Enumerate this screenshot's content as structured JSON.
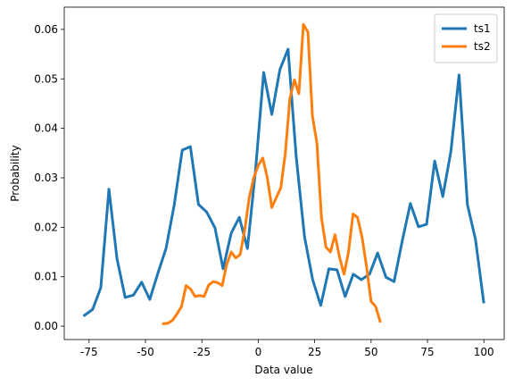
{
  "chart_data": {
    "type": "line",
    "xlabel": "Data value",
    "ylabel": "Probability",
    "xlim": [
      -86,
      109
    ],
    "ylim": [
      -0.0027,
      0.0645
    ],
    "xticks": [
      -75,
      -50,
      -25,
      0,
      25,
      50,
      75,
      100
    ],
    "yticks": [
      {
        "value": 0,
        "label": "0.00"
      },
      {
        "value": 0.01,
        "label": "0.01"
      },
      {
        "value": 0.02,
        "label": "0.02"
      },
      {
        "value": 0.03,
        "label": "0.03"
      },
      {
        "value": 0.04,
        "label": "0.04"
      },
      {
        "value": 0.05,
        "label": "0.05"
      },
      {
        "value": 0.06,
        "label": "0.06"
      }
    ],
    "legend": "upper right",
    "series": [
      {
        "name": "ts1",
        "color": "#1f77b4",
        "x": [
          -77,
          -73.4,
          -69.8,
          -66.2,
          -62.6,
          -59,
          -55.3,
          -51.7,
          -48.1,
          -44.5,
          -40.9,
          -37.3,
          -33.7,
          -30.1,
          -26.5,
          -22.9,
          -19.2,
          -15.6,
          -12,
          -8.4,
          -4.8,
          -1.2,
          2.4,
          6,
          9.6,
          13.2,
          16.8,
          20.5,
          24.1,
          27.7,
          31.3,
          34.9,
          38.5,
          42.1,
          45.7,
          49.3,
          52.9,
          56.6,
          60.2,
          63.8,
          67.4,
          71,
          74.6,
          78.2,
          81.8,
          85.4,
          89,
          92.7,
          96.3,
          99.9
        ],
        "values": [
          0.0022,
          0.0034,
          0.0078,
          0.0277,
          0.0136,
          0.0058,
          0.0063,
          0.0089,
          0.0054,
          0.0107,
          0.0157,
          0.0244,
          0.0356,
          0.0363,
          0.0246,
          0.0231,
          0.0199,
          0.0116,
          0.0188,
          0.022,
          0.0157,
          0.0316,
          0.0513,
          0.0428,
          0.0519,
          0.056,
          0.0343,
          0.0181,
          0.0094,
          0.0042,
          0.0116,
          0.0114,
          0.006,
          0.0105,
          0.0094,
          0.0105,
          0.0148,
          0.0099,
          0.009,
          0.0172,
          0.0248,
          0.0201,
          0.0206,
          0.0334,
          0.0262,
          0.0354,
          0.0508,
          0.0246,
          0.0175,
          0.0049
        ]
      },
      {
        "name": "ts2",
        "color": "#ff7f0e",
        "x": [
          -42,
          -40,
          -38,
          -36,
          -34,
          -32,
          -30,
          -28,
          -26,
          -24,
          -22,
          -20,
          -18,
          -16,
          -14,
          -12,
          -10,
          -8,
          -6,
          -4,
          -2,
          0,
          2,
          4,
          6,
          8,
          10,
          12,
          14,
          16,
          18,
          20,
          22,
          24,
          26,
          28,
          30,
          32,
          34,
          36,
          38,
          40,
          42,
          44,
          46,
          48,
          50,
          52,
          54
        ],
        "values": [
          0.0005,
          0.0006,
          0.0012,
          0.0025,
          0.004,
          0.0082,
          0.0075,
          0.006,
          0.0062,
          0.006,
          0.0083,
          0.009,
          0.0088,
          0.0082,
          0.0125,
          0.015,
          0.0138,
          0.0145,
          0.0195,
          0.026,
          0.03,
          0.0325,
          0.034,
          0.03,
          0.024,
          0.026,
          0.028,
          0.035,
          0.046,
          0.0498,
          0.047,
          0.061,
          0.0595,
          0.0425,
          0.037,
          0.022,
          0.016,
          0.015,
          0.0185,
          0.014,
          0.0105,
          0.015,
          0.0227,
          0.022,
          0.018,
          0.012,
          0.005,
          0.004,
          0.001
        ]
      }
    ]
  }
}
